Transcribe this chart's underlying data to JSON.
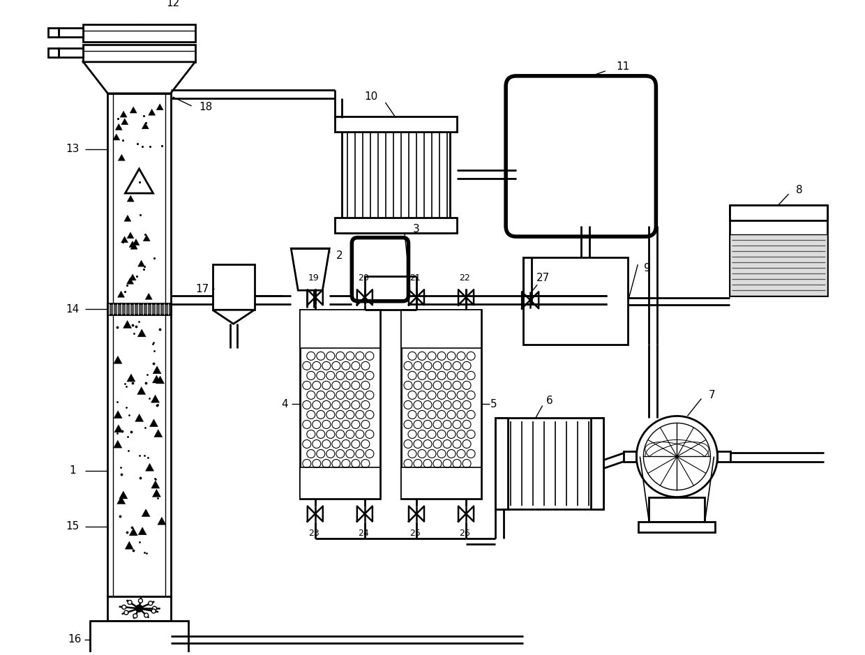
{
  "bg_color": "#ffffff",
  "lw": 2.0,
  "lw1": 1.0,
  "lw15": 1.5
}
